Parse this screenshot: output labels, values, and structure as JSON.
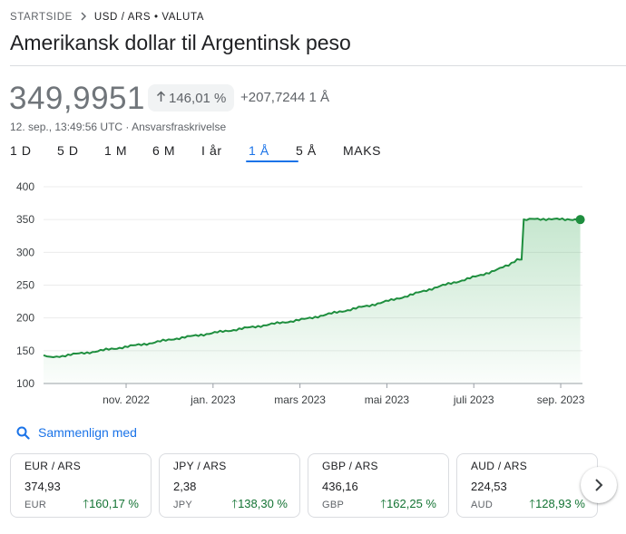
{
  "breadcrumb": {
    "home": "STARTSIDE",
    "current": "USD / ARS • VALUTA"
  },
  "title": "Amerikansk dollar til Argentinsk peso",
  "quote": {
    "price": "349,9951",
    "percent_change": "146,01 %",
    "abs_change": "+207,7244 1 Å",
    "timestamp": "12. sep., 13:49:56 UTC",
    "separator": " · ",
    "disclaimer": "Ansvarsfraskrivelse"
  },
  "range_tabs": [
    {
      "label": "1 D",
      "active": false
    },
    {
      "label": "5 D",
      "active": false
    },
    {
      "label": "1 M",
      "active": false
    },
    {
      "label": "6 M",
      "active": false
    },
    {
      "label": "I år",
      "active": false
    },
    {
      "label": "1 Å",
      "active": true
    },
    {
      "label": "5 Å",
      "active": false
    },
    {
      "label": "MAKS",
      "active": false
    }
  ],
  "chart_data": {
    "type": "area",
    "ylim": [
      100,
      400
    ],
    "y_ticks": [
      100,
      150,
      200,
      250,
      300,
      350,
      400
    ],
    "x_tick_labels": [
      "nov. 2022",
      "jan. 2023",
      "mars 2023",
      "mai 2023",
      "juli 2023",
      "sep. 2023"
    ],
    "x_tick_positions": [
      1.9,
      3.9,
      5.9,
      7.9,
      9.9,
      11.9
    ],
    "x_range": [
      0,
      12.4
    ],
    "grid": true,
    "line_color": "#1e8e3e",
    "x": [
      0,
      0.15,
      0.3,
      0.5,
      1,
      1.5,
      2,
      2.5,
      3,
      3.5,
      4,
      4.5,
      5,
      5.5,
      6,
      6.5,
      7,
      7.5,
      8,
      8.5,
      9,
      9.5,
      10,
      10.5,
      10.9,
      11.0,
      11.05,
      11.5,
      12,
      12.35
    ],
    "y": [
      142,
      141,
      140,
      143,
      147,
      152,
      157,
      162,
      168,
      173,
      178,
      183,
      188,
      193,
      198,
      205,
      212,
      219,
      227,
      236,
      246,
      255,
      264,
      275,
      288,
      289,
      350,
      351,
      350,
      350
    ],
    "last_point": {
      "x": 12.35,
      "y": 350
    }
  },
  "compare": {
    "label": "Sammenlign med"
  },
  "cards": [
    {
      "pair": "EUR / ARS",
      "rate": "374,93",
      "code": "EUR",
      "change": "160,17 %"
    },
    {
      "pair": "JPY / ARS",
      "rate": "2,38",
      "code": "JPY",
      "change": "138,30 %"
    },
    {
      "pair": "GBP / ARS",
      "rate": "436,16",
      "code": "GBP",
      "change": "162,25 %"
    },
    {
      "pair": "AUD / ARS",
      "rate": "224,53",
      "code": "AUD",
      "change": "128,93 %"
    }
  ],
  "icons": {
    "up_arrow": "arrow-up-icon",
    "search": "search-icon",
    "next": "chevron-right-icon",
    "breadcrumb_sep": "chevron-right-icon"
  },
  "colors": {
    "accent": "#1a73e8",
    "positive": "#137333",
    "line": "#1e8e3e"
  }
}
